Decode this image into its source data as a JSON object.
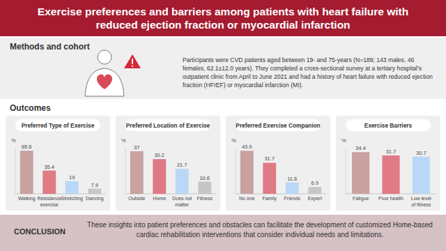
{
  "header": {
    "title": "Exercise preferences and barriers among patients with heart failure with reduced ejection fraction or myocardial infarction"
  },
  "methods": {
    "heading": "Methods and cohort",
    "text": "Participants were CVD patients aged between 19- and 75-years (N=189; 143 males, 46 females, 62.1±12.0 years). They completed a cross-sectional survey at a tertiary hospital's outpatient clinic from April to June 2021 and had a history of heart failure with reduced ejection fraction (HFrEF) or myocardial infarction (MI)."
  },
  "outcomes": {
    "heading": "Outcomes"
  },
  "conclusion": {
    "heading": "CONCLUSION",
    "text": "These insights into patient preferences and obstacles can facilitate the development of customized Home-based cardiac rehabilitation interventions that consider individual needs and limitations."
  },
  "chart_data": [
    {
      "type": "bar",
      "title": "Preferred Type of Exercise",
      "y_label": "%",
      "categories": [
        "Walking",
        "Resistance exercise",
        "Stretching",
        "Dancing"
      ],
      "values": [
        65.6,
        35.4,
        19,
        7.9
      ],
      "colors": [
        "#c9a1a1",
        "#e07a85",
        "#b9d8f7",
        "#c6c6c6"
      ],
      "ylim": [
        0,
        70
      ],
      "tick_labels": false,
      "data_labels": true
    },
    {
      "type": "bar",
      "title": "Preferred Location of Exercise",
      "y_label": "%",
      "categories": [
        "Outside",
        "Home",
        "Does not matter",
        "Fitness"
      ],
      "values": [
        37,
        30.2,
        21.7,
        10.6
      ],
      "colors": [
        "#c9a1a1",
        "#e07a85",
        "#b9d8f7",
        "#c6c6c6"
      ],
      "ylim": [
        0,
        40
      ],
      "tick_labels": false,
      "data_labels": true
    },
    {
      "type": "bar",
      "title": "Preferred Exercise Companion",
      "y_label": "%",
      "categories": [
        "No one",
        "Family",
        "Friends",
        "Expert"
      ],
      "values": [
        43.9,
        31.7,
        11.6,
        6.9
      ],
      "colors": [
        "#c9a1a1",
        "#e07a85",
        "#b9d8f7",
        "#c6c6c6"
      ],
      "ylim": [
        0,
        47
      ],
      "tick_labels": false,
      "data_labels": true
    },
    {
      "type": "bar",
      "title": "Exercise Barriers",
      "y_label": "%",
      "categories": [
        "Fatigue",
        "Poor health",
        "Low level of fitness"
      ],
      "values": [
        34.4,
        31.7,
        30.7
      ],
      "colors": [
        "#c9a1a1",
        "#e07a85",
        "#b9d8f7"
      ],
      "ylim": [
        0,
        38
      ],
      "tick_labels": false,
      "data_labels": true
    }
  ]
}
